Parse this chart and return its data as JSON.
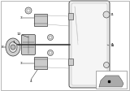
{
  "bg_color": "#ffffff",
  "border_color": "#cccccc",
  "line_color": "#333333",
  "label_color": "#000000",
  "lw_main": 0.5,
  "lw_thin": 0.3
}
